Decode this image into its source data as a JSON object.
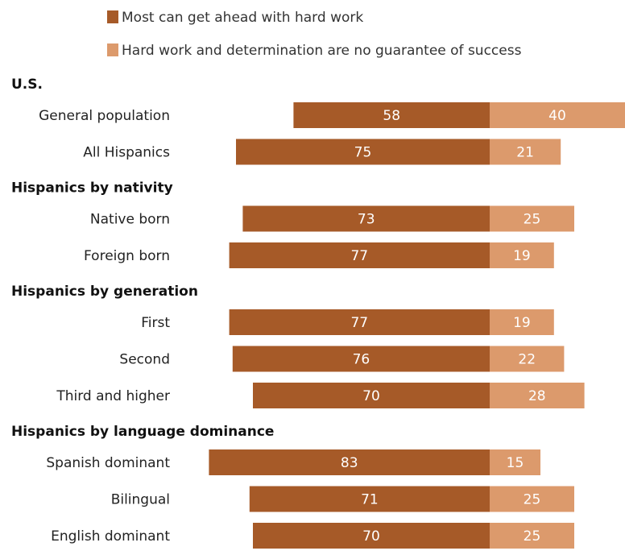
{
  "chart_data": {
    "type": "bar",
    "orientation": "horizontal-diverging",
    "legend_placement": "top",
    "series": [
      {
        "name": "Most can get ahead with hard work",
        "color": "#a65a28"
      },
      {
        "name": "Hard work and determination are no guarantee of success",
        "color": "#dc9a6c"
      }
    ],
    "groups": [
      {
        "label": "U.S.",
        "rows": [
          {
            "label": "General population",
            "values": [
              58,
              40
            ]
          },
          {
            "label": "All Hispanics",
            "values": [
              75,
              21
            ]
          }
        ]
      },
      {
        "label": "Hispanics by nativity",
        "rows": [
          {
            "label": "Native born",
            "values": [
              73,
              25
            ]
          },
          {
            "label": "Foreign born",
            "values": [
              77,
              19
            ]
          }
        ]
      },
      {
        "label": "Hispanics by generation",
        "rows": [
          {
            "label": "First",
            "values": [
              77,
              19
            ]
          },
          {
            "label": "Second",
            "values": [
              76,
              22
            ]
          },
          {
            "label": "Third and higher",
            "values": [
              70,
              28
            ]
          }
        ]
      },
      {
        "label": "Hispanics by language dominance",
        "rows": [
          {
            "label": "Spanish dominant",
            "values": [
              83,
              15
            ]
          },
          {
            "label": "Bilingual",
            "values": [
              71,
              25
            ]
          },
          {
            "label": "English dominant",
            "values": [
              70,
              25
            ]
          }
        ]
      }
    ]
  }
}
